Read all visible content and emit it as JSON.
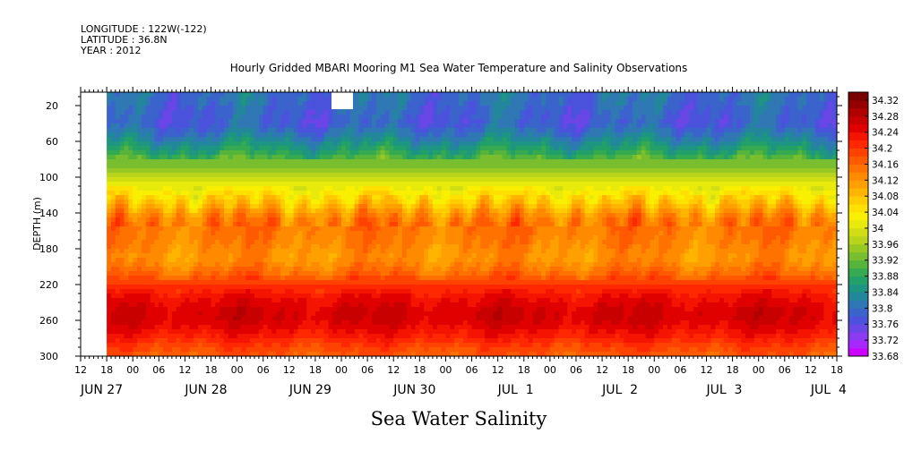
{
  "header": {
    "longitude": "LONGITUDE : 122W(-122)",
    "latitude": "LATITUDE : 36.8N",
    "year": "YEAR : 2012"
  },
  "chart_data": {
    "type": "heatmap",
    "title": "Hourly Gridded MBARI Mooring M1 Sea Water Temperature and Salinity Observations",
    "bottom_title": "Sea Water Salinity",
    "xlabel": "",
    "ylabel": "DEPTH (m)",
    "ylim": [
      300,
      5
    ],
    "yticks": [
      20,
      60,
      100,
      140,
      180,
      220,
      260,
      300
    ],
    "x_hours_range": [
      0,
      174
    ],
    "x_data_start_hour": 6,
    "x_hour_ticks": [
      {
        "h": 0,
        "label": "12"
      },
      {
        "h": 6,
        "label": "18"
      },
      {
        "h": 12,
        "label": "00"
      },
      {
        "h": 18,
        "label": "06"
      },
      {
        "h": 24,
        "label": "12"
      },
      {
        "h": 30,
        "label": "18"
      },
      {
        "h": 36,
        "label": "00"
      },
      {
        "h": 42,
        "label": "06"
      },
      {
        "h": 48,
        "label": "12"
      },
      {
        "h": 54,
        "label": "18"
      },
      {
        "h": 60,
        "label": "00"
      },
      {
        "h": 66,
        "label": "06"
      },
      {
        "h": 72,
        "label": "12"
      },
      {
        "h": 78,
        "label": "18"
      },
      {
        "h": 84,
        "label": "00"
      },
      {
        "h": 90,
        "label": "06"
      },
      {
        "h": 96,
        "label": "12"
      },
      {
        "h": 102,
        "label": "18"
      },
      {
        "h": 108,
        "label": "00"
      },
      {
        "h": 114,
        "label": "06"
      },
      {
        "h": 120,
        "label": "12"
      },
      {
        "h": 126,
        "label": "18"
      },
      {
        "h": 132,
        "label": "00"
      },
      {
        "h": 138,
        "label": "06"
      },
      {
        "h": 144,
        "label": "12"
      },
      {
        "h": 150,
        "label": "18"
      },
      {
        "h": 156,
        "label": "00"
      },
      {
        "h": 162,
        "label": "06"
      },
      {
        "h": 168,
        "label": "12"
      },
      {
        "h": 174,
        "label": "18"
      }
    ],
    "x_day_labels": [
      {
        "h": 0,
        "label": "JUN 27"
      },
      {
        "h": 24,
        "label": "JUN 28"
      },
      {
        "h": 48,
        "label": "JUN 29"
      },
      {
        "h": 72,
        "label": "JUN 30"
      },
      {
        "h": 96,
        "label": "JUL  1"
      },
      {
        "h": 120,
        "label": "JUL  2"
      },
      {
        "h": 144,
        "label": "JUL  3"
      },
      {
        "h": 168,
        "label": "JUL  4"
      }
    ],
    "depth_profile": [
      {
        "depth": 5,
        "value": 33.8
      },
      {
        "depth": 15,
        "value": 33.8
      },
      {
        "depth": 25,
        "value": 33.79
      },
      {
        "depth": 40,
        "value": 33.78
      },
      {
        "depth": 55,
        "value": 33.82
      },
      {
        "depth": 70,
        "value": 33.87
      },
      {
        "depth": 85,
        "value": 33.93
      },
      {
        "depth": 100,
        "value": 33.98
      },
      {
        "depth": 115,
        "value": 34.03
      },
      {
        "depth": 130,
        "value": 34.08
      },
      {
        "depth": 140,
        "value": 34.12
      },
      {
        "depth": 150,
        "value": 34.15
      },
      {
        "depth": 170,
        "value": 34.14
      },
      {
        "depth": 190,
        "value": 34.12
      },
      {
        "depth": 205,
        "value": 34.15
      },
      {
        "depth": 220,
        "value": 34.2
      },
      {
        "depth": 235,
        "value": 34.24
      },
      {
        "depth": 250,
        "value": 34.26
      },
      {
        "depth": 260,
        "value": 34.26
      },
      {
        "depth": 275,
        "value": 34.23
      },
      {
        "depth": 290,
        "value": 34.19
      },
      {
        "depth": 300,
        "value": 34.17
      }
    ],
    "colorbar": {
      "min": 33.68,
      "max": 34.34,
      "step": 0.02,
      "labels": [
        "34.32",
        "34.28",
        "34.24",
        "34.2",
        "34.16",
        "34.12",
        "34.08",
        "34.04",
        "34",
        "33.96",
        "33.92",
        "33.88",
        "33.84",
        "33.8",
        "33.76",
        "33.72",
        "33.68"
      ],
      "colors": [
        "#cc00ff",
        "#a829ff",
        "#8c3cf0",
        "#6a46e6",
        "#4b52dc",
        "#3a64cc",
        "#2f78b4",
        "#23879c",
        "#1e9482",
        "#23a068",
        "#35aa50",
        "#56b43a",
        "#78be2e",
        "#98c824",
        "#b8d41c",
        "#d2de14",
        "#e8ea0c",
        "#f8f000",
        "#ffe000",
        "#ffcc00",
        "#ffb400",
        "#ff9f00",
        "#ff8a00",
        "#ff7200",
        "#ff5a00",
        "#ff4200",
        "#ff2800",
        "#f51400",
        "#e00000",
        "#c80000",
        "#b00000",
        "#940000",
        "#780000"
      ]
    }
  }
}
